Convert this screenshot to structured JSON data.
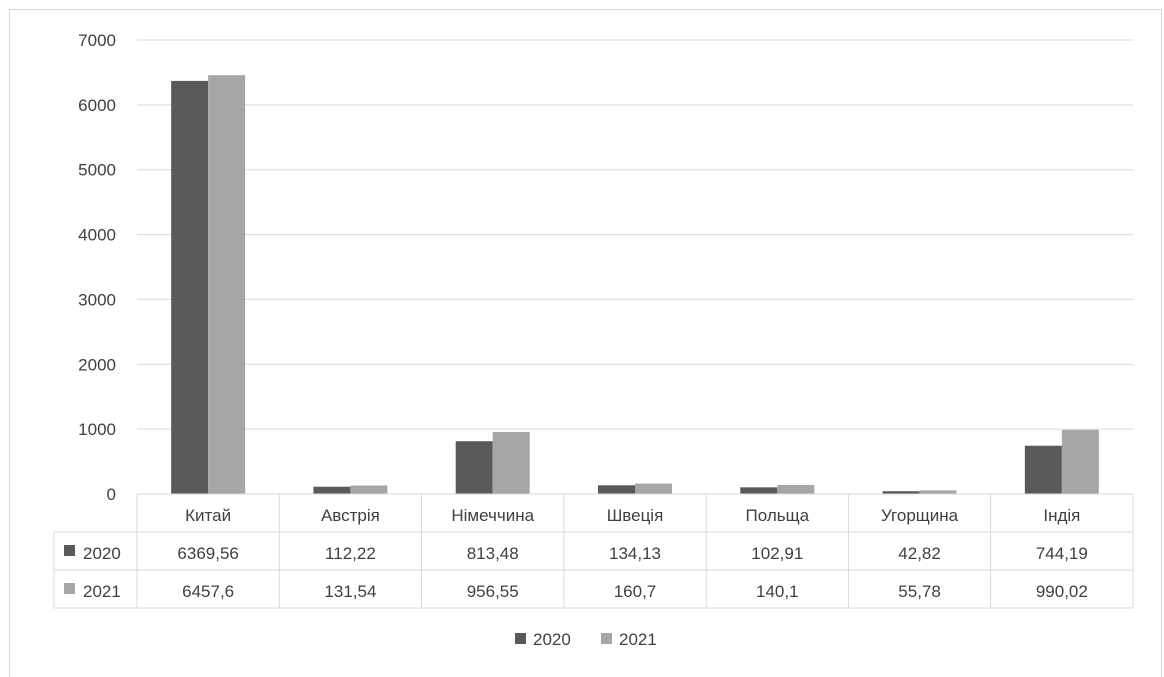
{
  "chart_data": {
    "type": "bar",
    "categories": [
      "Китай",
      "Австрія",
      "Німеччина",
      "Швеція",
      "Польща",
      "Угорщина",
      "Індія"
    ],
    "series": [
      {
        "name": "2020",
        "color": "#595959",
        "values": [
          6369.56,
          112.22,
          813.48,
          134.13,
          102.91,
          42.82,
          744.19
        ],
        "labels": [
          "6369,56",
          "112,22",
          "813,48",
          "134,13",
          "102,91",
          "42,82",
          "744,19"
        ]
      },
      {
        "name": "2021",
        "color": "#a6a6a6",
        "values": [
          6457.6,
          131.54,
          956.55,
          160.7,
          140.1,
          55.78,
          990.02
        ],
        "labels": [
          "6457,6",
          "131,54",
          "956,55",
          "160,7",
          "140,1",
          "55,78",
          "990,02"
        ]
      }
    ],
    "ylim": [
      0,
      7000
    ],
    "yticks": [
      "0",
      "1000",
      "2000",
      "3000",
      "4000",
      "5000",
      "6000",
      "7000"
    ],
    "grid": true,
    "legend_position": "bottom",
    "data_table": true
  }
}
